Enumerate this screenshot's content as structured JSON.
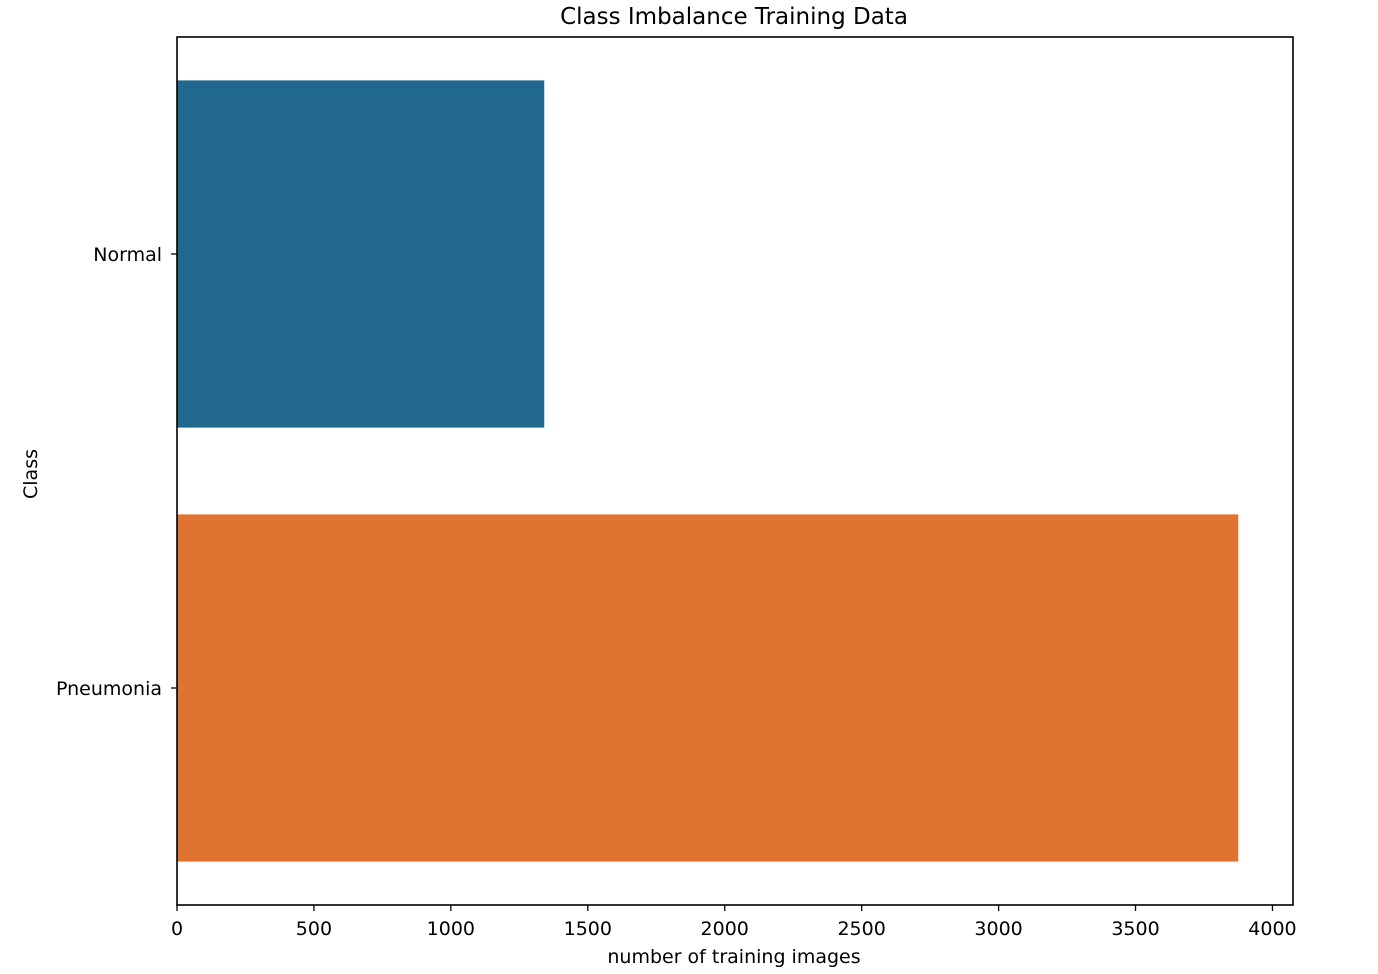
{
  "chart_data": {
    "type": "bar",
    "orientation": "horizontal",
    "title": "Class Imbalance Training Data",
    "xlabel": "number of training images",
    "ylabel": "Class",
    "categories": [
      "Normal",
      "Pneumonia"
    ],
    "values": [
      1341,
      3875
    ],
    "colors": [
      "#21688f",
      "#e07330"
    ],
    "xlim": [
      0,
      4075
    ],
    "xticks": [
      0,
      500,
      1000,
      1500,
      2000,
      2500,
      3000,
      3500,
      4000
    ],
    "xtick_labels": [
      "0",
      "500",
      "1000",
      "1500",
      "2000",
      "2500",
      "3000",
      "3500",
      "4000"
    ],
    "grid": false,
    "legend": "none"
  }
}
